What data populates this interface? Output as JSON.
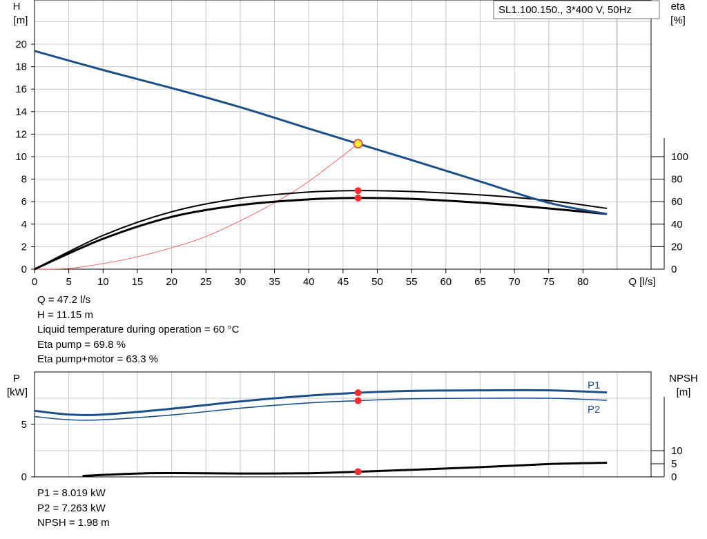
{
  "top_chart": {
    "title": "SL1.100.150., 3*400 V, 50Hz",
    "y_left_label": [
      "H",
      "[m]"
    ],
    "y_right_label": [
      "eta",
      "[%]"
    ],
    "x_label": "Q [l/s]",
    "x_ticks": [
      "0",
      "5",
      "10",
      "15",
      "20",
      "25",
      "30",
      "35",
      "40",
      "45",
      "50",
      "55",
      "60",
      "65",
      "70",
      "75",
      "80"
    ],
    "y_left_ticks": [
      "0",
      "2",
      "4",
      "6",
      "8",
      "10",
      "12",
      "14",
      "16",
      "18",
      "20"
    ],
    "y_right_ticks": [
      "0",
      "20",
      "40",
      "60",
      "80",
      "100"
    ]
  },
  "bottom_chart": {
    "y_left_label": [
      "P",
      "[kW]"
    ],
    "y_right_label": [
      "NPSH",
      "[m]"
    ],
    "y_left_ticks": [
      "0",
      "5"
    ],
    "y_right_ticks": [
      "0",
      "5",
      "10"
    ],
    "series_label_p1": "P1",
    "series_label_p2": "P2"
  },
  "duty_point_info": [
    "Q = 47.2 l/s",
    "H = 11.15 m",
    "Liquid temperature during operation = 60 °C",
    "Eta pump = 69.8 %",
    "Eta pump+motor = 63.3 %"
  ],
  "power_info": [
    "P1 = 8.019 kW",
    "P2 = 7.263 kW",
    "NPSH = 1.98 m"
  ],
  "colors": {
    "head": "#1b4f8a",
    "efficiency": "#000000",
    "system": "#ff4040",
    "duty_marker": "#ff2a2a",
    "duty_head_marker": "#ffee33"
  },
  "chart_data": [
    {
      "type": "line",
      "xlabel": "Q [l/s]",
      "ylabel": "H [m]",
      "y2label": "eta [%]",
      "xlim": [
        0,
        90
      ],
      "ylim": [
        0,
        20
      ],
      "y2lim": [
        0,
        100
      ],
      "duty_point": {
        "x": 47.2,
        "y": 11.15
      },
      "series": [
        {
          "axis": "left",
          "x": [
            0,
            10,
            20,
            30,
            40,
            47.2,
            55,
            65,
            75,
            83.5
          ],
          "values": [
            19.4,
            17.7,
            16.1,
            14.4,
            12.5,
            11.15,
            9.7,
            7.8,
            5.9,
            4.9
          ]
        },
        {
          "axis": "left",
          "x": [
            0,
            5,
            10,
            15,
            20,
            25,
            30,
            35,
            40,
            47.2
          ],
          "values": [
            0,
            0.06,
            0.5,
            1.1,
            1.9,
            2.9,
            4.3,
            5.9,
            7.8,
            11.15
          ]
        },
        {
          "axis": "right",
          "x": [
            0,
            10,
            20,
            30,
            40,
            47.2,
            55,
            65,
            75,
            83.5
          ],
          "values": [
            0,
            30,
            51,
            63,
            68.5,
            69.8,
            69,
            66,
            61,
            54
          ]
        },
        {
          "axis": "right",
          "x": [
            0,
            10,
            20,
            30,
            40,
            47.2,
            55,
            65,
            75,
            83.5
          ],
          "values": [
            0,
            27,
            46.5,
            57,
            62,
            63.3,
            62.5,
            59,
            54,
            49
          ]
        }
      ]
    },
    {
      "type": "line",
      "ylabel": "P [kW]",
      "y2label": "NPSH [m]",
      "xlim": [
        0,
        90
      ],
      "ylim": [
        0,
        10
      ],
      "y2lim": [
        0,
        20
      ],
      "series": [
        {
          "name": "P1",
          "axis": "left",
          "x": [
            0,
            5,
            10,
            20,
            30,
            40,
            47.2,
            55,
            65,
            75,
            83.5
          ],
          "values": [
            6.3,
            5.95,
            5.95,
            6.5,
            7.2,
            7.75,
            8.019,
            8.2,
            8.25,
            8.25,
            8.05
          ]
        },
        {
          "name": "P2",
          "axis": "left",
          "x": [
            0,
            5,
            10,
            20,
            30,
            40,
            47.2,
            55,
            65,
            75,
            83.5
          ],
          "values": [
            5.75,
            5.45,
            5.45,
            5.9,
            6.55,
            7.05,
            7.263,
            7.45,
            7.5,
            7.5,
            7.3
          ]
        },
        {
          "axis": "right",
          "x": [
            7,
            15,
            20,
            30,
            40,
            47.2,
            55,
            65,
            75,
            83.5
          ],
          "values": [
            0.4,
            1.3,
            1.45,
            1.3,
            1.4,
            1.98,
            2.7,
            3.7,
            4.9,
            5.4
          ]
        }
      ]
    }
  ]
}
